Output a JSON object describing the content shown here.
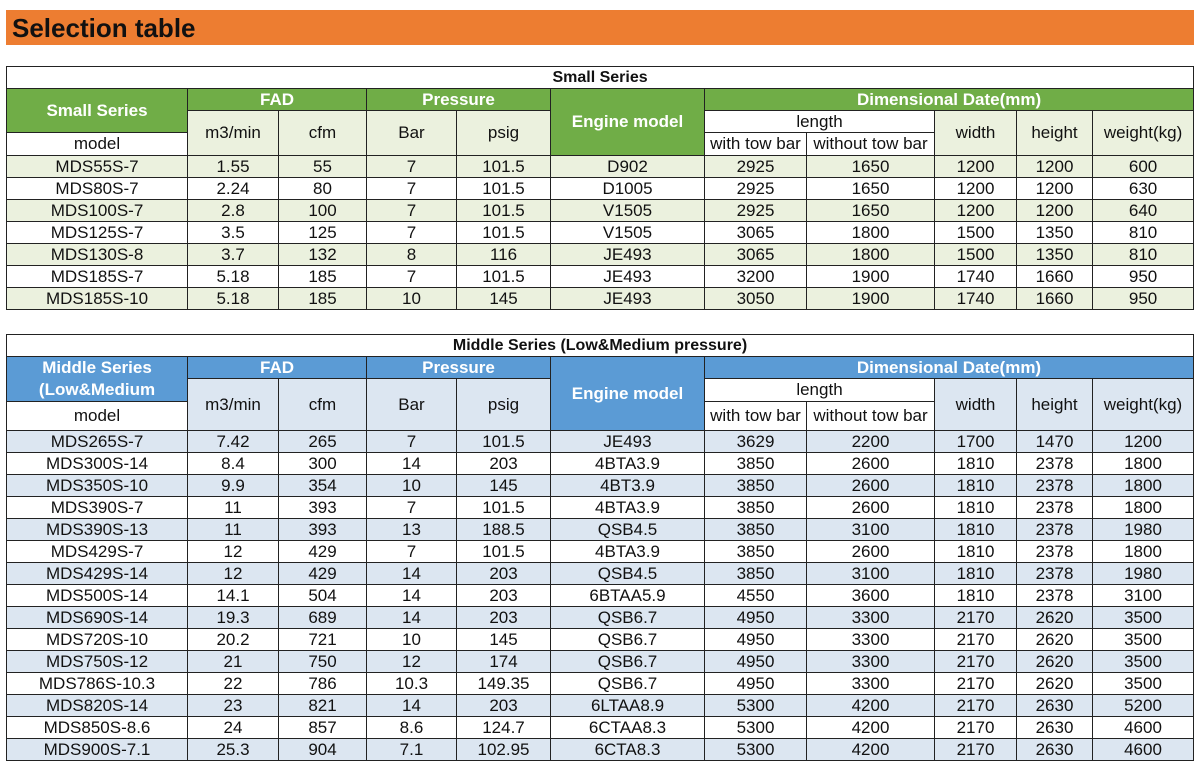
{
  "page_title": "Selection table",
  "headers": {
    "fad": "FAD",
    "pressure": "Pressure",
    "engine": "Engine model",
    "dim": "Dimensional Date(mm)",
    "m3min": "m3/min",
    "cfm": "cfm",
    "bar": "Bar",
    "psig": "psig",
    "length": "length",
    "with_tow": "with tow bar",
    "without_tow": "without tow bar",
    "width": "width",
    "height": "height",
    "weight": "weight(kg)",
    "model": "model"
  },
  "small": {
    "title": "Small Series",
    "series_label": "Small Series",
    "rows": [
      [
        "MDS55S-7",
        "1.55",
        "55",
        "7",
        "101.5",
        "D902",
        "2925",
        "1650",
        "1200",
        "1200",
        "600"
      ],
      [
        "MDS80S-7",
        "2.24",
        "80",
        "7",
        "101.5",
        "D1005",
        "2925",
        "1650",
        "1200",
        "1200",
        "630"
      ],
      [
        "MDS100S-7",
        "2.8",
        "100",
        "7",
        "101.5",
        "V1505",
        "2925",
        "1650",
        "1200",
        "1200",
        "640"
      ],
      [
        "MDS125S-7",
        "3.5",
        "125",
        "7",
        "101.5",
        "V1505",
        "3065",
        "1800",
        "1500",
        "1350",
        "810"
      ],
      [
        "MDS130S-8",
        "3.7",
        "132",
        "8",
        "116",
        "JE493",
        "3065",
        "1800",
        "1500",
        "1350",
        "810"
      ],
      [
        "MDS185S-7",
        "5.18",
        "185",
        "7",
        "101.5",
        "JE493",
        "3200",
        "1900",
        "1740",
        "1660",
        "950"
      ],
      [
        "MDS185S-10",
        "5.18",
        "185",
        "10",
        "145",
        "JE493",
        "3050",
        "1900",
        "1740",
        "1660",
        "950"
      ]
    ]
  },
  "middle": {
    "title": "Middle Series  (Low&Medium pressure)",
    "series_label": "Middle Series (Low&Medium",
    "rows": [
      [
        "MDS265S-7",
        "7.42",
        "265",
        "7",
        "101.5",
        "JE493",
        "3629",
        "2200",
        "1700",
        "1470",
        "1200"
      ],
      [
        "MDS300S-14",
        "8.4",
        "300",
        "14",
        "203",
        "4BTA3.9",
        "3850",
        "2600",
        "1810",
        "2378",
        "1800"
      ],
      [
        "MDS350S-10",
        "9.9",
        "354",
        "10",
        "145",
        "4BT3.9",
        "3850",
        "2600",
        "1810",
        "2378",
        "1800"
      ],
      [
        "MDS390S-7",
        "11",
        "393",
        "7",
        "101.5",
        "4BTA3.9",
        "3850",
        "2600",
        "1810",
        "2378",
        "1800"
      ],
      [
        "MDS390S-13",
        "11",
        "393",
        "13",
        "188.5",
        "QSB4.5",
        "3850",
        "3100",
        "1810",
        "2378",
        "1980"
      ],
      [
        "MDS429S-7",
        "12",
        "429",
        "7",
        "101.5",
        "4BTA3.9",
        "3850",
        "2600",
        "1810",
        "2378",
        "1800"
      ],
      [
        "MDS429S-14",
        "12",
        "429",
        "14",
        "203",
        "QSB4.5",
        "3850",
        "3100",
        "1810",
        "2378",
        "1980"
      ],
      [
        "MDS500S-14",
        "14.1",
        "504",
        "14",
        "203",
        "6BTAA5.9",
        "4550",
        "3600",
        "1810",
        "2378",
        "3100"
      ],
      [
        "MDS690S-14",
        "19.3",
        "689",
        "14",
        "203",
        "QSB6.7",
        "4950",
        "3300",
        "2170",
        "2620",
        "3500"
      ],
      [
        "MDS720S-10",
        "20.2",
        "721",
        "10",
        "145",
        "QSB6.7",
        "4950",
        "3300",
        "2170",
        "2620",
        "3500"
      ],
      [
        "MDS750S-12",
        "21",
        "750",
        "12",
        "174",
        "QSB6.7",
        "4950",
        "3300",
        "2170",
        "2620",
        "3500"
      ],
      [
        "MDS786S-10.3",
        "22",
        "786",
        "10.3",
        "149.35",
        "QSB6.7",
        "4950",
        "3300",
        "2170",
        "2620",
        "3500"
      ],
      [
        "MDS820S-14",
        "23",
        "821",
        "14",
        "203",
        "6LTAA8.9",
        "5300",
        "4200",
        "2170",
        "2630",
        "5200"
      ],
      [
        "MDS850S-8.6",
        "24",
        "857",
        "8.6",
        "124.7",
        "6CTAA8.3",
        "5300",
        "4200",
        "2170",
        "2630",
        "4600"
      ],
      [
        "MDS900S-7.1",
        "25.3",
        "904",
        "7.1",
        "102.95",
        "6CTA8.3",
        "5300",
        "4200",
        "2170",
        "2630",
        "4600"
      ]
    ]
  }
}
